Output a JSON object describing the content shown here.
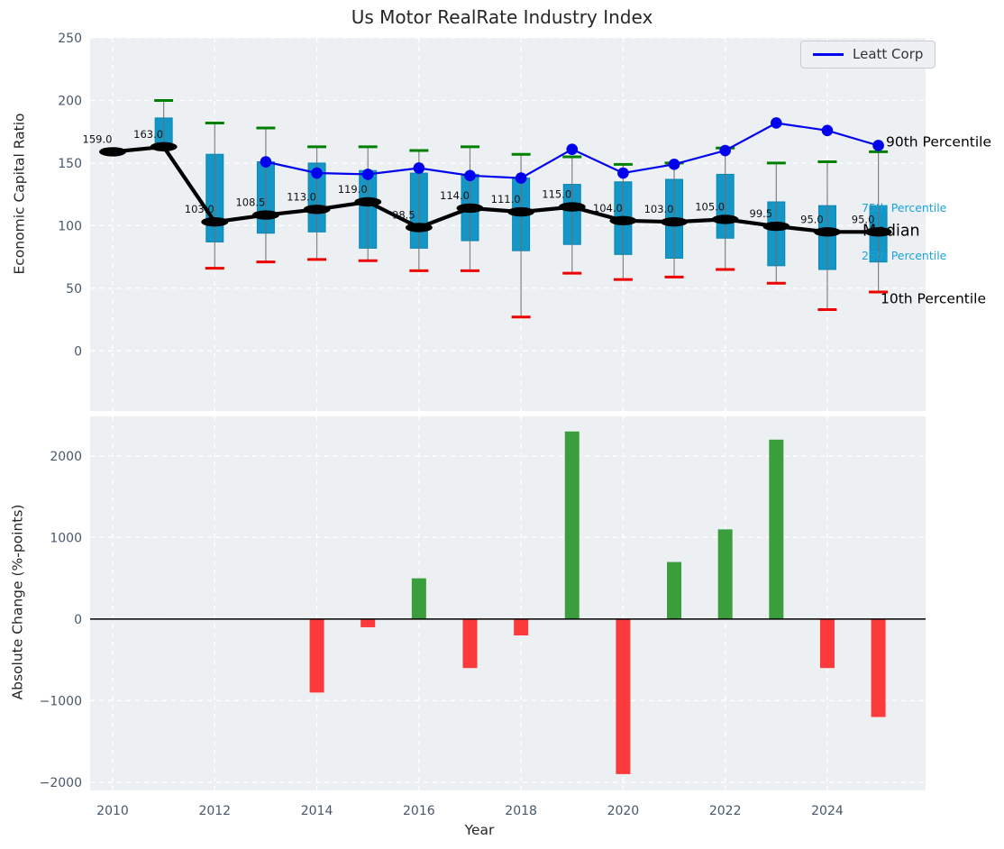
{
  "figure": {
    "title": "Us Motor RealRate Industry Index",
    "colors": {
      "axes_bg": "#edf0f2",
      "grid": "#ffffff",
      "tick": "#47586b",
      "text": "#262626",
      "box_fill": "#1496c6",
      "box_edge": "#0d85b2",
      "whisker": "#6f6f6f",
      "cap_top": "#008000",
      "cap_bottom": "#ee0000",
      "median_line": "#000000",
      "leatt_line": "#0000ee",
      "bar_positive": "#3a9e3c",
      "bar_negative": "#fb3b3b",
      "annotation_cyan": "#1ba3d6"
    }
  },
  "legend": {
    "label": "Leatt Corp"
  },
  "annotations": {
    "p90": "90th Percentile",
    "p75": "75th Percentile",
    "median": "Median",
    "p25": "25th Percentile",
    "p10": "10th Percentile"
  },
  "chart_data": [
    {
      "type": "boxplot+line",
      "title": "Us Motor RealRate Industry Index",
      "ylabel": "Economic Capital Ratio",
      "ylim": [
        -48,
        250
      ],
      "yticks": [
        250,
        200,
        150,
        100,
        50,
        0
      ],
      "xticks": [
        2010,
        2012,
        2014,
        2016,
        2018,
        2020,
        2022,
        2024
      ],
      "grid": true,
      "legend_position": "upper right",
      "years": [
        2010,
        2011,
        2012,
        2013,
        2014,
        2015,
        2016,
        2017,
        2018,
        2019,
        2020,
        2021,
        2022,
        2023,
        2024,
        2025
      ],
      "boxes": [
        {
          "year": 2010,
          "p10": 158,
          "p25": 158,
          "median": 159,
          "p75": 160,
          "p90": 161,
          "label": "159.0"
        },
        {
          "year": 2011,
          "p10": 162,
          "p25": 162,
          "median": 163,
          "p75": 186,
          "p90": 200,
          "label": "163.0"
        },
        {
          "year": 2012,
          "p10": 66,
          "p25": 87,
          "median": 103,
          "p75": 157,
          "p90": 182,
          "label": "103.0"
        },
        {
          "year": 2013,
          "p10": 71,
          "p25": 94,
          "median": 108.5,
          "p75": 151,
          "p90": 178,
          "label": "108.5"
        },
        {
          "year": 2014,
          "p10": 73,
          "p25": 95,
          "median": 113,
          "p75": 150,
          "p90": 163,
          "label": "113.0"
        },
        {
          "year": 2015,
          "p10": 72,
          "p25": 82,
          "median": 119,
          "p75": 144,
          "p90": 163,
          "label": "119.0"
        },
        {
          "year": 2016,
          "p10": 64,
          "p25": 82,
          "median": 98.5,
          "p75": 142,
          "p90": 160,
          "label": "98.5"
        },
        {
          "year": 2017,
          "p10": 64,
          "p25": 88,
          "median": 114,
          "p75": 141,
          "p90": 163,
          "label": "114.0"
        },
        {
          "year": 2018,
          "p10": 27,
          "p25": 80,
          "median": 111,
          "p75": 138,
          "p90": 157,
          "label": "111.0"
        },
        {
          "year": 2019,
          "p10": 62,
          "p25": 85,
          "median": 115,
          "p75": 133,
          "p90": 155,
          "label": "115.0"
        },
        {
          "year": 2020,
          "p10": 57,
          "p25": 77,
          "median": 104,
          "p75": 135,
          "p90": 149,
          "label": "104.0"
        },
        {
          "year": 2021,
          "p10": 59,
          "p25": 74,
          "median": 103,
          "p75": 137,
          "p90": 150,
          "label": "103.0"
        },
        {
          "year": 2022,
          "p10": 65,
          "p25": 90,
          "median": 105,
          "p75": 141,
          "p90": 162,
          "label": "105.0"
        },
        {
          "year": 2023,
          "p10": 54,
          "p25": 68,
          "median": 99.5,
          "p75": 119,
          "p90": 150,
          "label": "99.5"
        },
        {
          "year": 2024,
          "p10": 33,
          "p25": 65,
          "median": 95,
          "p75": 116,
          "p90": 151,
          "label": "95.0"
        },
        {
          "year": 2025,
          "p10": 47,
          "p25": 71,
          "median": 95,
          "p75": 116,
          "p90": 159,
          "label": "95.0"
        }
      ],
      "series": [
        {
          "name": "Leatt Corp",
          "type": "line",
          "x": [
            2013,
            2014,
            2015,
            2016,
            2017,
            2018,
            2019,
            2020,
            2021,
            2022,
            2023,
            2024,
            2025
          ],
          "values": [
            151,
            142,
            141,
            146,
            140,
            138,
            161,
            142,
            149,
            160,
            182,
            176,
            164
          ]
        }
      ]
    },
    {
      "type": "bar",
      "ylabel": "Absolute Change (%-points)",
      "xlabel": "Year",
      "ylim": [
        -2100,
        2485
      ],
      "yticks": [
        2000,
        1000,
        0,
        -1000,
        -2000
      ],
      "xticks": [
        2010,
        2012,
        2014,
        2016,
        2018,
        2020,
        2022,
        2024
      ],
      "grid": true,
      "categories": [
        2010,
        2011,
        2012,
        2013,
        2014,
        2015,
        2016,
        2017,
        2018,
        2019,
        2020,
        2021,
        2022,
        2023,
        2024,
        2025
      ],
      "values": [
        null,
        null,
        null,
        null,
        -900,
        -100,
        500,
        -600,
        -200,
        2300,
        -1900,
        700,
        1100,
        2200,
        -600,
        -1200
      ]
    }
  ]
}
